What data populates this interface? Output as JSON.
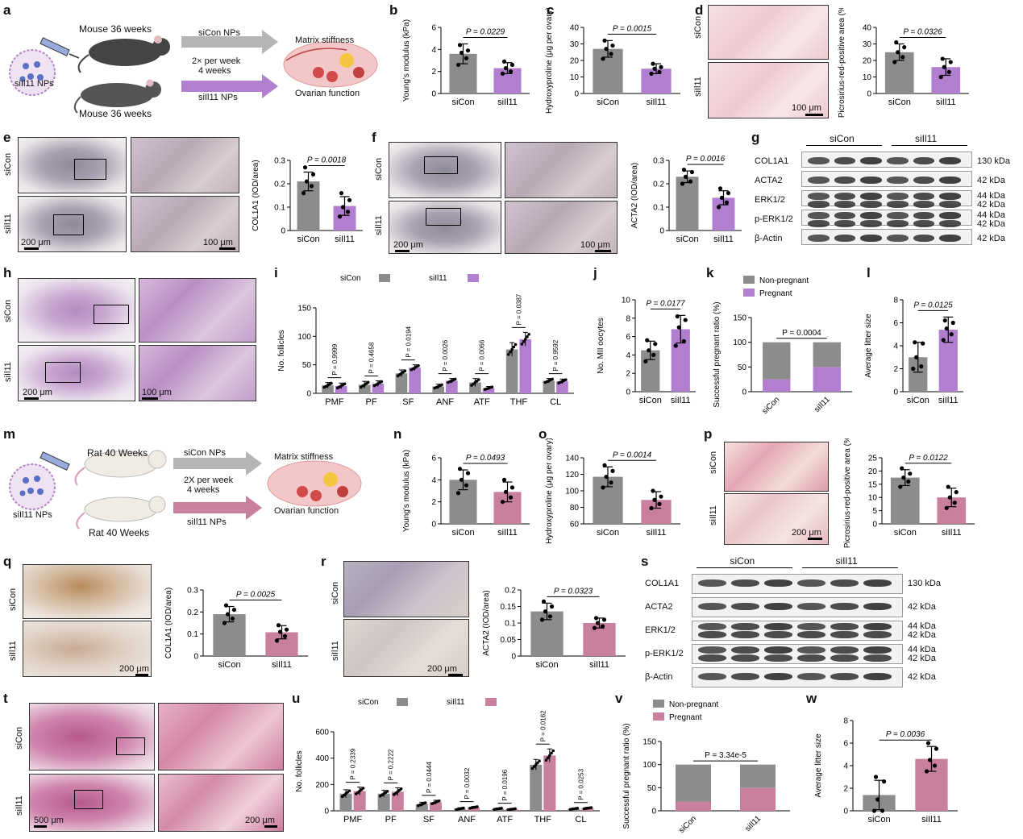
{
  "panel_letters": [
    "a",
    "b",
    "c",
    "d",
    "e",
    "f",
    "g",
    "h",
    "i",
    "j",
    "k",
    "l",
    "m",
    "n",
    "o",
    "p",
    "q",
    "r",
    "s",
    "t",
    "u",
    "v",
    "w"
  ],
  "schematic_mouse": {
    "top_label": "Mouse 36 weeks",
    "bottom_label": "Mouse 36 weeks",
    "siCon_arrow": "siCon NPs",
    "dose_line1": "2× per week",
    "dose_line2": "4 weeks",
    "siIl11_arrow": "siIl11 NPs",
    "np_label": "siIl11 NPs",
    "outcome1": "Matrix stiffness",
    "outcome2": "Ovarian function"
  },
  "schematic_rat": {
    "top_label": "Rat 40 Weeks",
    "bottom_label": "Rat 40 Weeks",
    "siCon_arrow": "siCon NPs",
    "dose_line1": "2X per week",
    "dose_line2": "4 weeks",
    "siIl11_arrow": "siIl11 NPs",
    "np_label": "siIl11 NPs",
    "outcome1": "Matrix stiffness",
    "outcome2": "Ovarian function"
  },
  "image_labels": {
    "siCon": "siCon",
    "siIl11": "siIl11",
    "scale_100um": "100 μm",
    "scale_200um": "200 μm",
    "scale_500um": "500 μm"
  },
  "western_mouse": {
    "groups": [
      "siCon",
      "siIl11"
    ],
    "rows": [
      {
        "name": "COL1A1",
        "kda": "130 kDa"
      },
      {
        "name": "ACTA2",
        "kda": "42 kDa"
      },
      {
        "name": "ERK1/2",
        "kda": "44 kDa",
        "kda2": "42 kDa"
      },
      {
        "name": "p-ERK1/2",
        "kda": "44 kDa",
        "kda2": "42 kDa"
      },
      {
        "name": "β-Actin",
        "kda": "42 kDa"
      }
    ]
  },
  "western_rat": {
    "groups": [
      "siCon",
      "siIl11"
    ],
    "rows": [
      {
        "name": "COL1A1",
        "kda": "130 kDa"
      },
      {
        "name": "ACTA2",
        "kda": "42 kDa"
      },
      {
        "name": "ERK1/2",
        "kda": "44 kDa",
        "kda2": "42 kDa"
      },
      {
        "name": "p-ERK1/2",
        "kda": "44 kDa",
        "kda2": "42 kDa"
      },
      {
        "name": "β-Actin",
        "kda": "42 kDa"
      }
    ]
  },
  "colors": {
    "grey": "#8c8c8c",
    "purple": "#b27fd0",
    "rose": "#c97f9e"
  },
  "chart_data": [
    {
      "id": "b",
      "type": "bar",
      "categories": [
        "siCon",
        "siIl11"
      ],
      "values": [
        3.6,
        2.3
      ],
      "errors": [
        0.9,
        0.5
      ],
      "points": [
        [
          2.6,
          3.2,
          3.7,
          3.9,
          4.4
        ],
        [
          1.8,
          2.0,
          2.3,
          2.6,
          2.9
        ]
      ],
      "ylabel": "Young's modulus (kPa)",
      "ylim": [
        0,
        6
      ],
      "yticks": [
        0,
        2,
        4,
        6
      ],
      "p": "P = 0.0229",
      "colors": [
        "#8c8c8c",
        "#b27fd0"
      ]
    },
    {
      "id": "c",
      "type": "bar",
      "categories": [
        "siCon",
        "siIl11"
      ],
      "values": [
        27,
        15
      ],
      "errors": [
        5,
        3
      ],
      "points": [
        [
          21,
          24,
          27,
          29,
          32
        ],
        [
          12,
          13,
          15,
          16,
          18
        ]
      ],
      "ylabel": "Hydroxyproline (μg per ovary)",
      "ylim": [
        0,
        40
      ],
      "yticks": [
        0,
        10,
        20,
        30,
        40
      ],
      "p": "P = 0.0015",
      "colors": [
        "#8c8c8c",
        "#b27fd0"
      ]
    },
    {
      "id": "d",
      "type": "bar",
      "categories": [
        "siCon",
        "siIl11"
      ],
      "values": [
        25,
        16
      ],
      "errors": [
        5,
        5
      ],
      "points": [
        [
          19,
          22,
          25,
          28,
          31
        ],
        [
          10,
          13,
          16,
          19,
          21
        ]
      ],
      "ylabel": "Picrosirius-red-positive area (%)",
      "ylim": [
        0,
        40
      ],
      "yticks": [
        0,
        10,
        20,
        30,
        40
      ],
      "p": "P = 0.0326",
      "colors": [
        "#8c8c8c",
        "#b27fd0"
      ]
    },
    {
      "id": "e",
      "type": "bar",
      "categories": [
        "siCon",
        "siIl11"
      ],
      "values": [
        0.21,
        0.105
      ],
      "errors": [
        0.04,
        0.04
      ],
      "points": [
        [
          0.16,
          0.19,
          0.21,
          0.24,
          0.27
        ],
        [
          0.06,
          0.08,
          0.1,
          0.13,
          0.16
        ]
      ],
      "ylabel": "COL1A1 (IOD/area)",
      "ylim": [
        0,
        0.3
      ],
      "yticks": [
        0,
        0.1,
        0.2,
        0.3
      ],
      "p": "P = 0.0018",
      "colors": [
        "#8c8c8c",
        "#b27fd0"
      ]
    },
    {
      "id": "f",
      "type": "bar",
      "categories": [
        "siCon",
        "siIl11"
      ],
      "values": [
        0.23,
        0.14
      ],
      "errors": [
        0.025,
        0.03
      ],
      "points": [
        [
          0.2,
          0.21,
          0.23,
          0.25,
          0.26
        ],
        [
          0.1,
          0.12,
          0.14,
          0.16,
          0.18
        ]
      ],
      "ylabel": "ACTA2 (IOD/area)",
      "ylim": [
        0,
        0.3
      ],
      "yticks": [
        0,
        0.1,
        0.2,
        0.3
      ],
      "p": "P = 0.0016",
      "colors": [
        "#8c8c8c",
        "#b27fd0"
      ]
    },
    {
      "id": "i",
      "type": "bar",
      "categories": [
        "PMF",
        "PF",
        "SF",
        "ANF",
        "ATF",
        "THF",
        "CL"
      ],
      "series": [
        {
          "name": "siCon",
          "values": [
            14,
            15,
            35,
            12,
            19,
            77,
            22
          ]
        },
        {
          "name": "siIl11",
          "values": [
            13,
            17,
            45,
            22,
            9,
            95,
            21
          ]
        }
      ],
      "errors": [
        [
          5,
          6,
          6,
          4,
          7,
          12,
          4
        ],
        [
          5,
          5,
          5,
          4,
          3,
          12,
          4
        ]
      ],
      "pvalues": [
        "P = 0.9999",
        "P = 0.4658",
        "P = 0.0194",
        "P = 0.0026",
        "P = 0.0066",
        "P = 0.0387",
        "P = 0.9592"
      ],
      "ylabel": "No. follicles",
      "ylim": [
        0,
        150
      ],
      "yticks": [
        0,
        50,
        100,
        150
      ],
      "colors": [
        "#8c8c8c",
        "#b27fd0"
      ]
    },
    {
      "id": "j",
      "type": "bar",
      "categories": [
        "siCon",
        "siIl11"
      ],
      "values": [
        4.5,
        6.8
      ],
      "errors": [
        1.0,
        1.5
      ],
      "points": [
        [
          3.3,
          4.0,
          4.5,
          5.2,
          5.6
        ],
        [
          5.0,
          5.5,
          7.0,
          7.8,
          8.2
        ]
      ],
      "ylabel": "No. MII oocytes",
      "ylim": [
        0,
        10
      ],
      "yticks": [
        0,
        2,
        4,
        6,
        8,
        10
      ],
      "p": "P = 0.0177",
      "colors": [
        "#8c8c8c",
        "#b27fd0"
      ]
    },
    {
      "id": "k",
      "type": "bar",
      "stacked": true,
      "categories": [
        "siCon",
        "siIl11"
      ],
      "series": [
        {
          "name": "Non-pregnant",
          "values": [
            75,
            50
          ]
        },
        {
          "name": "Pregnant",
          "values": [
            25,
            50
          ]
        }
      ],
      "ylabel": "Successful pregnant ratio (%)",
      "ylim": [
        0,
        150
      ],
      "yticks": [
        0,
        50,
        100,
        150
      ],
      "p": "P = 0.0004",
      "colors": [
        "#8c8c8c",
        "#b27fd0"
      ]
    },
    {
      "id": "l",
      "type": "bar",
      "categories": [
        "siCon",
        "siIl11"
      ],
      "values": [
        3.0,
        5.4
      ],
      "errors": [
        1.3,
        1.1
      ],
      "points": [
        [
          2.0,
          2.2,
          3.0,
          4.2,
          4.3
        ],
        [
          4.5,
          5.0,
          5.5,
          6.0,
          6.2
        ]
      ],
      "ylabel": "Average litter size",
      "ylim": [
        0,
        8
      ],
      "yticks": [
        0,
        2,
        4,
        6,
        8
      ],
      "p": "P = 0.0125",
      "colors": [
        "#8c8c8c",
        "#b27fd0"
      ]
    },
    {
      "id": "n",
      "type": "bar",
      "categories": [
        "siCon",
        "siIl11"
      ],
      "values": [
        4.0,
        2.9
      ],
      "errors": [
        0.9,
        0.9
      ],
      "points": [
        [
          2.8,
          3.5,
          4.0,
          4.6,
          5.0
        ],
        [
          2.0,
          2.4,
          2.9,
          3.3,
          4.0
        ]
      ],
      "ylabel": "Young's modulus (kPa)",
      "ylim": [
        0,
        6
      ],
      "yticks": [
        0,
        2,
        4,
        6
      ],
      "p": "P = 0.0493",
      "colors": [
        "#8c8c8c",
        "#c97f9e"
      ]
    },
    {
      "id": "o",
      "type": "bar",
      "categories": [
        "siCon",
        "siIl11"
      ],
      "values": [
        117,
        89
      ],
      "errors": [
        12,
        10
      ],
      "points": [
        [
          104,
          110,
          117,
          124,
          131
        ],
        [
          79,
          84,
          89,
          93,
          100
        ]
      ],
      "ylabel": "Hydroxyproline (μg per ovary)",
      "ylim": [
        60,
        140
      ],
      "yticks": [
        60,
        80,
        100,
        120,
        140
      ],
      "p": "P = 0.0014",
      "colors": [
        "#8c8c8c",
        "#c97f9e"
      ]
    },
    {
      "id": "p",
      "type": "bar",
      "categories": [
        "siCon",
        "siIl11"
      ],
      "values": [
        17.5,
        10
      ],
      "errors": [
        3,
        3.5
      ],
      "points": [
        [
          14,
          16,
          17.5,
          19,
          21
        ],
        [
          6,
          8,
          10,
          12,
          14
        ]
      ],
      "ylabel": "Picrosirius-red-positive area (%)",
      "ylim": [
        0,
        25
      ],
      "yticks": [
        0,
        5,
        10,
        15,
        20,
        25
      ],
      "p": "P = 0.0122",
      "colors": [
        "#8c8c8c",
        "#c97f9e"
      ]
    },
    {
      "id": "q",
      "type": "bar",
      "categories": [
        "siCon",
        "siIl11"
      ],
      "values": [
        0.19,
        0.108
      ],
      "errors": [
        0.035,
        0.03
      ],
      "points": [
        [
          0.15,
          0.17,
          0.19,
          0.21,
          0.23
        ],
        [
          0.07,
          0.09,
          0.11,
          0.12,
          0.14
        ]
      ],
      "ylabel": "COL1A1 (IOD/area)",
      "ylim": [
        0,
        0.3
      ],
      "yticks": [
        0,
        0.1,
        0.2,
        0.3
      ],
      "p": "P = 0.0025",
      "colors": [
        "#8c8c8c",
        "#c97f9e"
      ]
    },
    {
      "id": "r",
      "type": "bar",
      "categories": [
        "siCon",
        "siIl11"
      ],
      "values": [
        0.135,
        0.1
      ],
      "errors": [
        0.025,
        0.015
      ],
      "points": [
        [
          0.11,
          0.12,
          0.135,
          0.15,
          0.165
        ],
        [
          0.085,
          0.09,
          0.1,
          0.11,
          0.115
        ]
      ],
      "ylabel": "ACTA2 (IOD/area)",
      "ylim": [
        0,
        0.2
      ],
      "yticks": [
        0,
        0.05,
        0.1,
        0.15,
        0.2
      ],
      "p": "P = 0.0323",
      "colors": [
        "#8c8c8c",
        "#c97f9e"
      ]
    },
    {
      "id": "u",
      "type": "bar",
      "categories": [
        "PMF",
        "PF",
        "SF",
        "ANF",
        "ATF",
        "THF",
        "CL"
      ],
      "series": [
        {
          "name": "siCon",
          "values": [
            130,
            130,
            50,
            15,
            15,
            350,
            15
          ]
        },
        {
          "name": "siIl11",
          "values": [
            150,
            145,
            65,
            25,
            12,
            420,
            20
          ]
        }
      ],
      "errors": [
        [
          30,
          25,
          15,
          8,
          6,
          40,
          6
        ],
        [
          30,
          30,
          15,
          8,
          5,
          50,
          6
        ]
      ],
      "pvalues": [
        "P = 0.2339",
        "P = 0.2222",
        "P = 0.0444",
        "P = 0.0032",
        "P = 0.0196",
        "P = 0.0162",
        "P = 0.0253"
      ],
      "ylabel": "No. follicles",
      "ylim": [
        0,
        600
      ],
      "yticks": [
        0,
        200,
        400,
        600
      ],
      "colors": [
        "#8c8c8c",
        "#c97f9e"
      ]
    },
    {
      "id": "v",
      "type": "bar",
      "stacked": true,
      "categories": [
        "siCon",
        "siIl11"
      ],
      "series": [
        {
          "name": "Non-pregnant",
          "values": [
            80,
            50
          ]
        },
        {
          "name": "Pregnant",
          "values": [
            20,
            50
          ]
        }
      ],
      "ylabel": "Successful pregnant ratio (%)",
      "ylim": [
        0,
        150
      ],
      "yticks": [
        0,
        50,
        100,
        150
      ],
      "p": "P = 3.34e-5",
      "colors": [
        "#8c8c8c",
        "#c97f9e"
      ]
    },
    {
      "id": "w",
      "type": "bar",
      "categories": [
        "siCon",
        "siIl11"
      ],
      "values": [
        1.4,
        4.6
      ],
      "errors": [
        1.3,
        1.1
      ],
      "points": [
        [
          0,
          0,
          1.0,
          2.6,
          3.0
        ],
        [
          3.5,
          4.0,
          4.5,
          5.5,
          6.0
        ]
      ],
      "ylabel": "Average litter size",
      "ylim": [
        0,
        8
      ],
      "yticks": [
        0,
        2,
        4,
        6,
        8
      ],
      "p": "P = 0.0036",
      "colors": [
        "#8c8c8c",
        "#c97f9e"
      ]
    }
  ]
}
